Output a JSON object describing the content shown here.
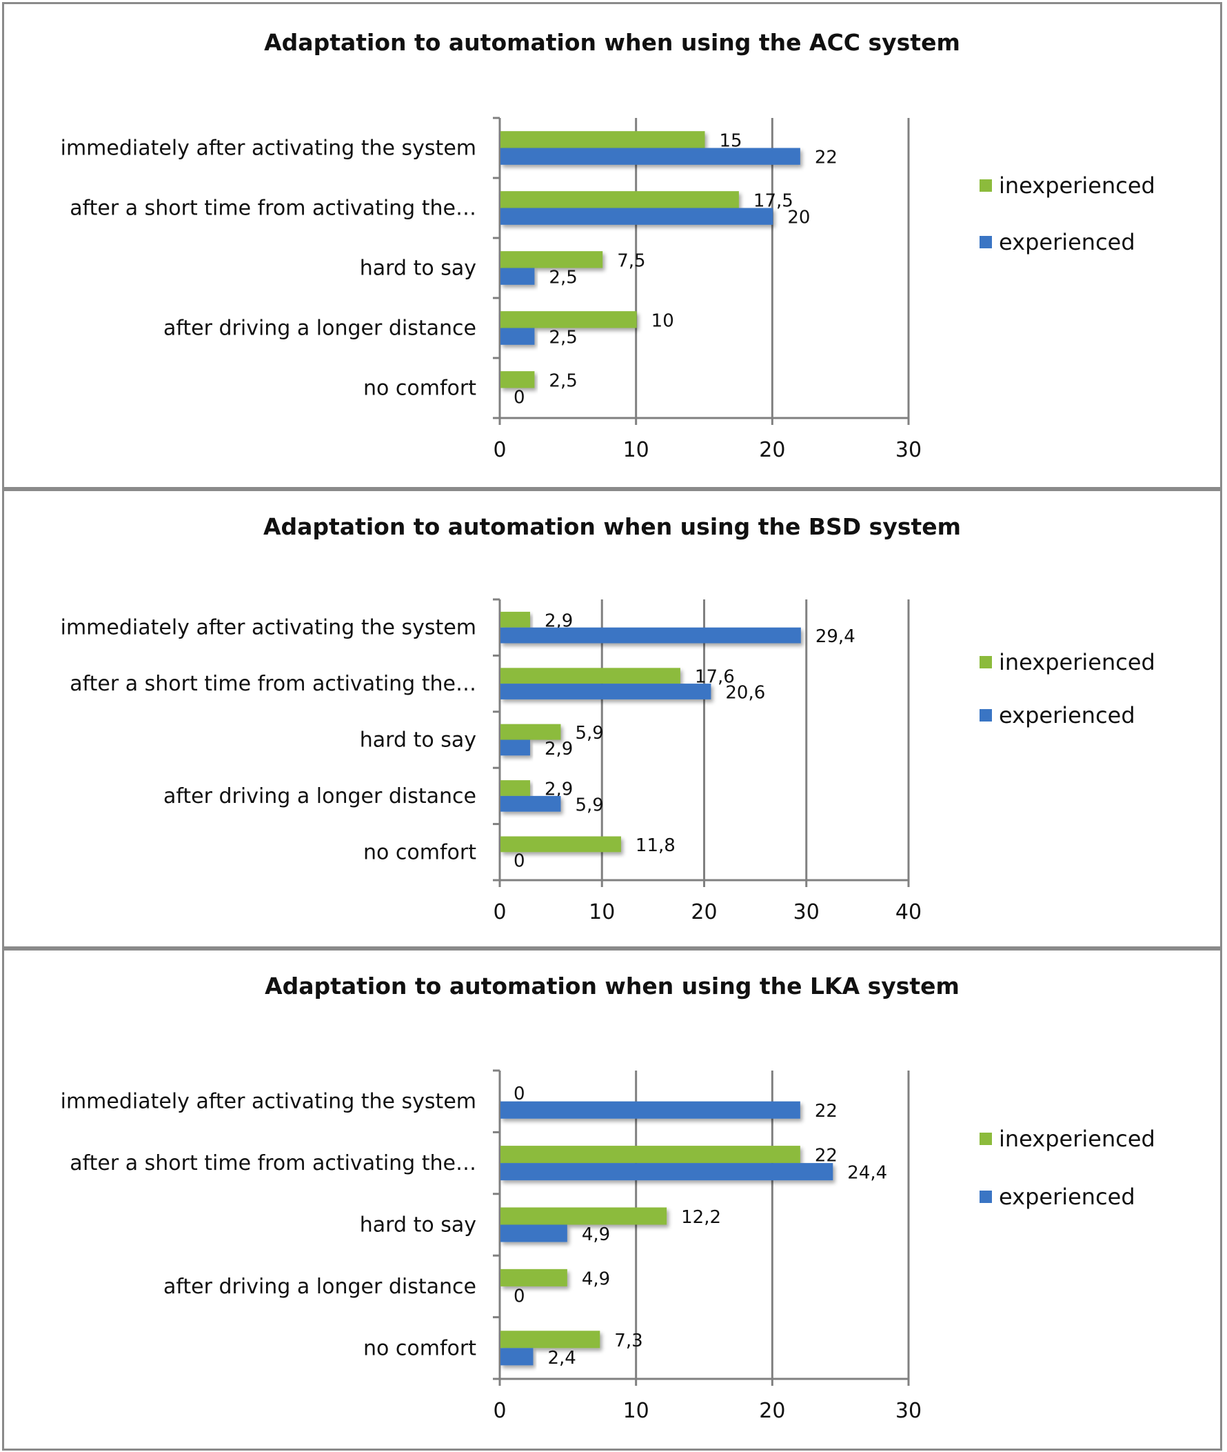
{
  "chart_data": [
    {
      "type": "bar",
      "orientation": "horizontal",
      "title": "Adaptation to automation when using the ACC system",
      "categories": [
        "immediately after activating the system",
        "after a short time from activating the…",
        "hard to say",
        "after driving a longer distance",
        "no comfort"
      ],
      "series": [
        {
          "name": "inexperienced",
          "color": "#8cbb3c",
          "values": [
            15,
            17.5,
            7.5,
            10,
            2.5
          ],
          "labels": [
            "15",
            "17,5",
            "7,5",
            "10",
            "2,5"
          ]
        },
        {
          "name": "experienced",
          "color": "#3a75c4",
          "values": [
            22,
            20,
            2.5,
            2.5,
            0
          ],
          "labels": [
            "22",
            "20",
            "2,5",
            "2,5",
            "0"
          ]
        }
      ],
      "xlim": [
        0,
        30
      ],
      "xticks": [
        "0",
        "10",
        "20",
        "30"
      ],
      "xtick_values": [
        0,
        10,
        20,
        30
      ],
      "grid": true,
      "legend": "right"
    },
    {
      "type": "bar",
      "orientation": "horizontal",
      "title": "Adaptation to automation when using the BSD system",
      "categories": [
        "immediately after activating the system",
        "after a short time from activating the…",
        "hard to say",
        "after driving a longer distance",
        "no comfort"
      ],
      "series": [
        {
          "name": "inexperienced",
          "color": "#8cbb3c",
          "values": [
            2.9,
            17.6,
            5.9,
            2.9,
            11.8
          ],
          "labels": [
            "2,9",
            "17,6",
            "5,9",
            "2,9",
            "11,8"
          ]
        },
        {
          "name": "experienced",
          "color": "#3a75c4",
          "values": [
            29.4,
            20.6,
            2.9,
            5.9,
            0
          ],
          "labels": [
            "29,4",
            "20,6",
            "2,9",
            "5,9",
            "0"
          ]
        }
      ],
      "xlim": [
        0,
        40
      ],
      "xticks": [
        "0",
        "10",
        "20",
        "30",
        "40"
      ],
      "xtick_values": [
        0,
        10,
        20,
        30,
        40
      ],
      "grid": true,
      "legend": "right"
    },
    {
      "type": "bar",
      "orientation": "horizontal",
      "title": "Adaptation to automation when using the LKA system",
      "categories": [
        "immediately after activating the system",
        "after a short time from activating the…",
        "hard to say",
        "after driving a longer distance",
        "no comfort"
      ],
      "series": [
        {
          "name": "inexperienced",
          "color": "#8cbb3c",
          "values": [
            0,
            22,
            12.2,
            4.9,
            7.3
          ],
          "labels": [
            "0",
            "22",
            "12,2",
            "4,9",
            "7,3"
          ]
        },
        {
          "name": "experienced",
          "color": "#3a75c4",
          "values": [
            22,
            24.4,
            4.9,
            0,
            2.4
          ],
          "labels": [
            "22",
            "24,4",
            "4,9",
            "0",
            "2,4"
          ]
        }
      ],
      "xlim": [
        0,
        30
      ],
      "xticks": [
        "0",
        "10",
        "20",
        "30"
      ],
      "xtick_values": [
        0,
        10,
        20,
        30
      ],
      "grid": true,
      "legend": "right"
    }
  ]
}
